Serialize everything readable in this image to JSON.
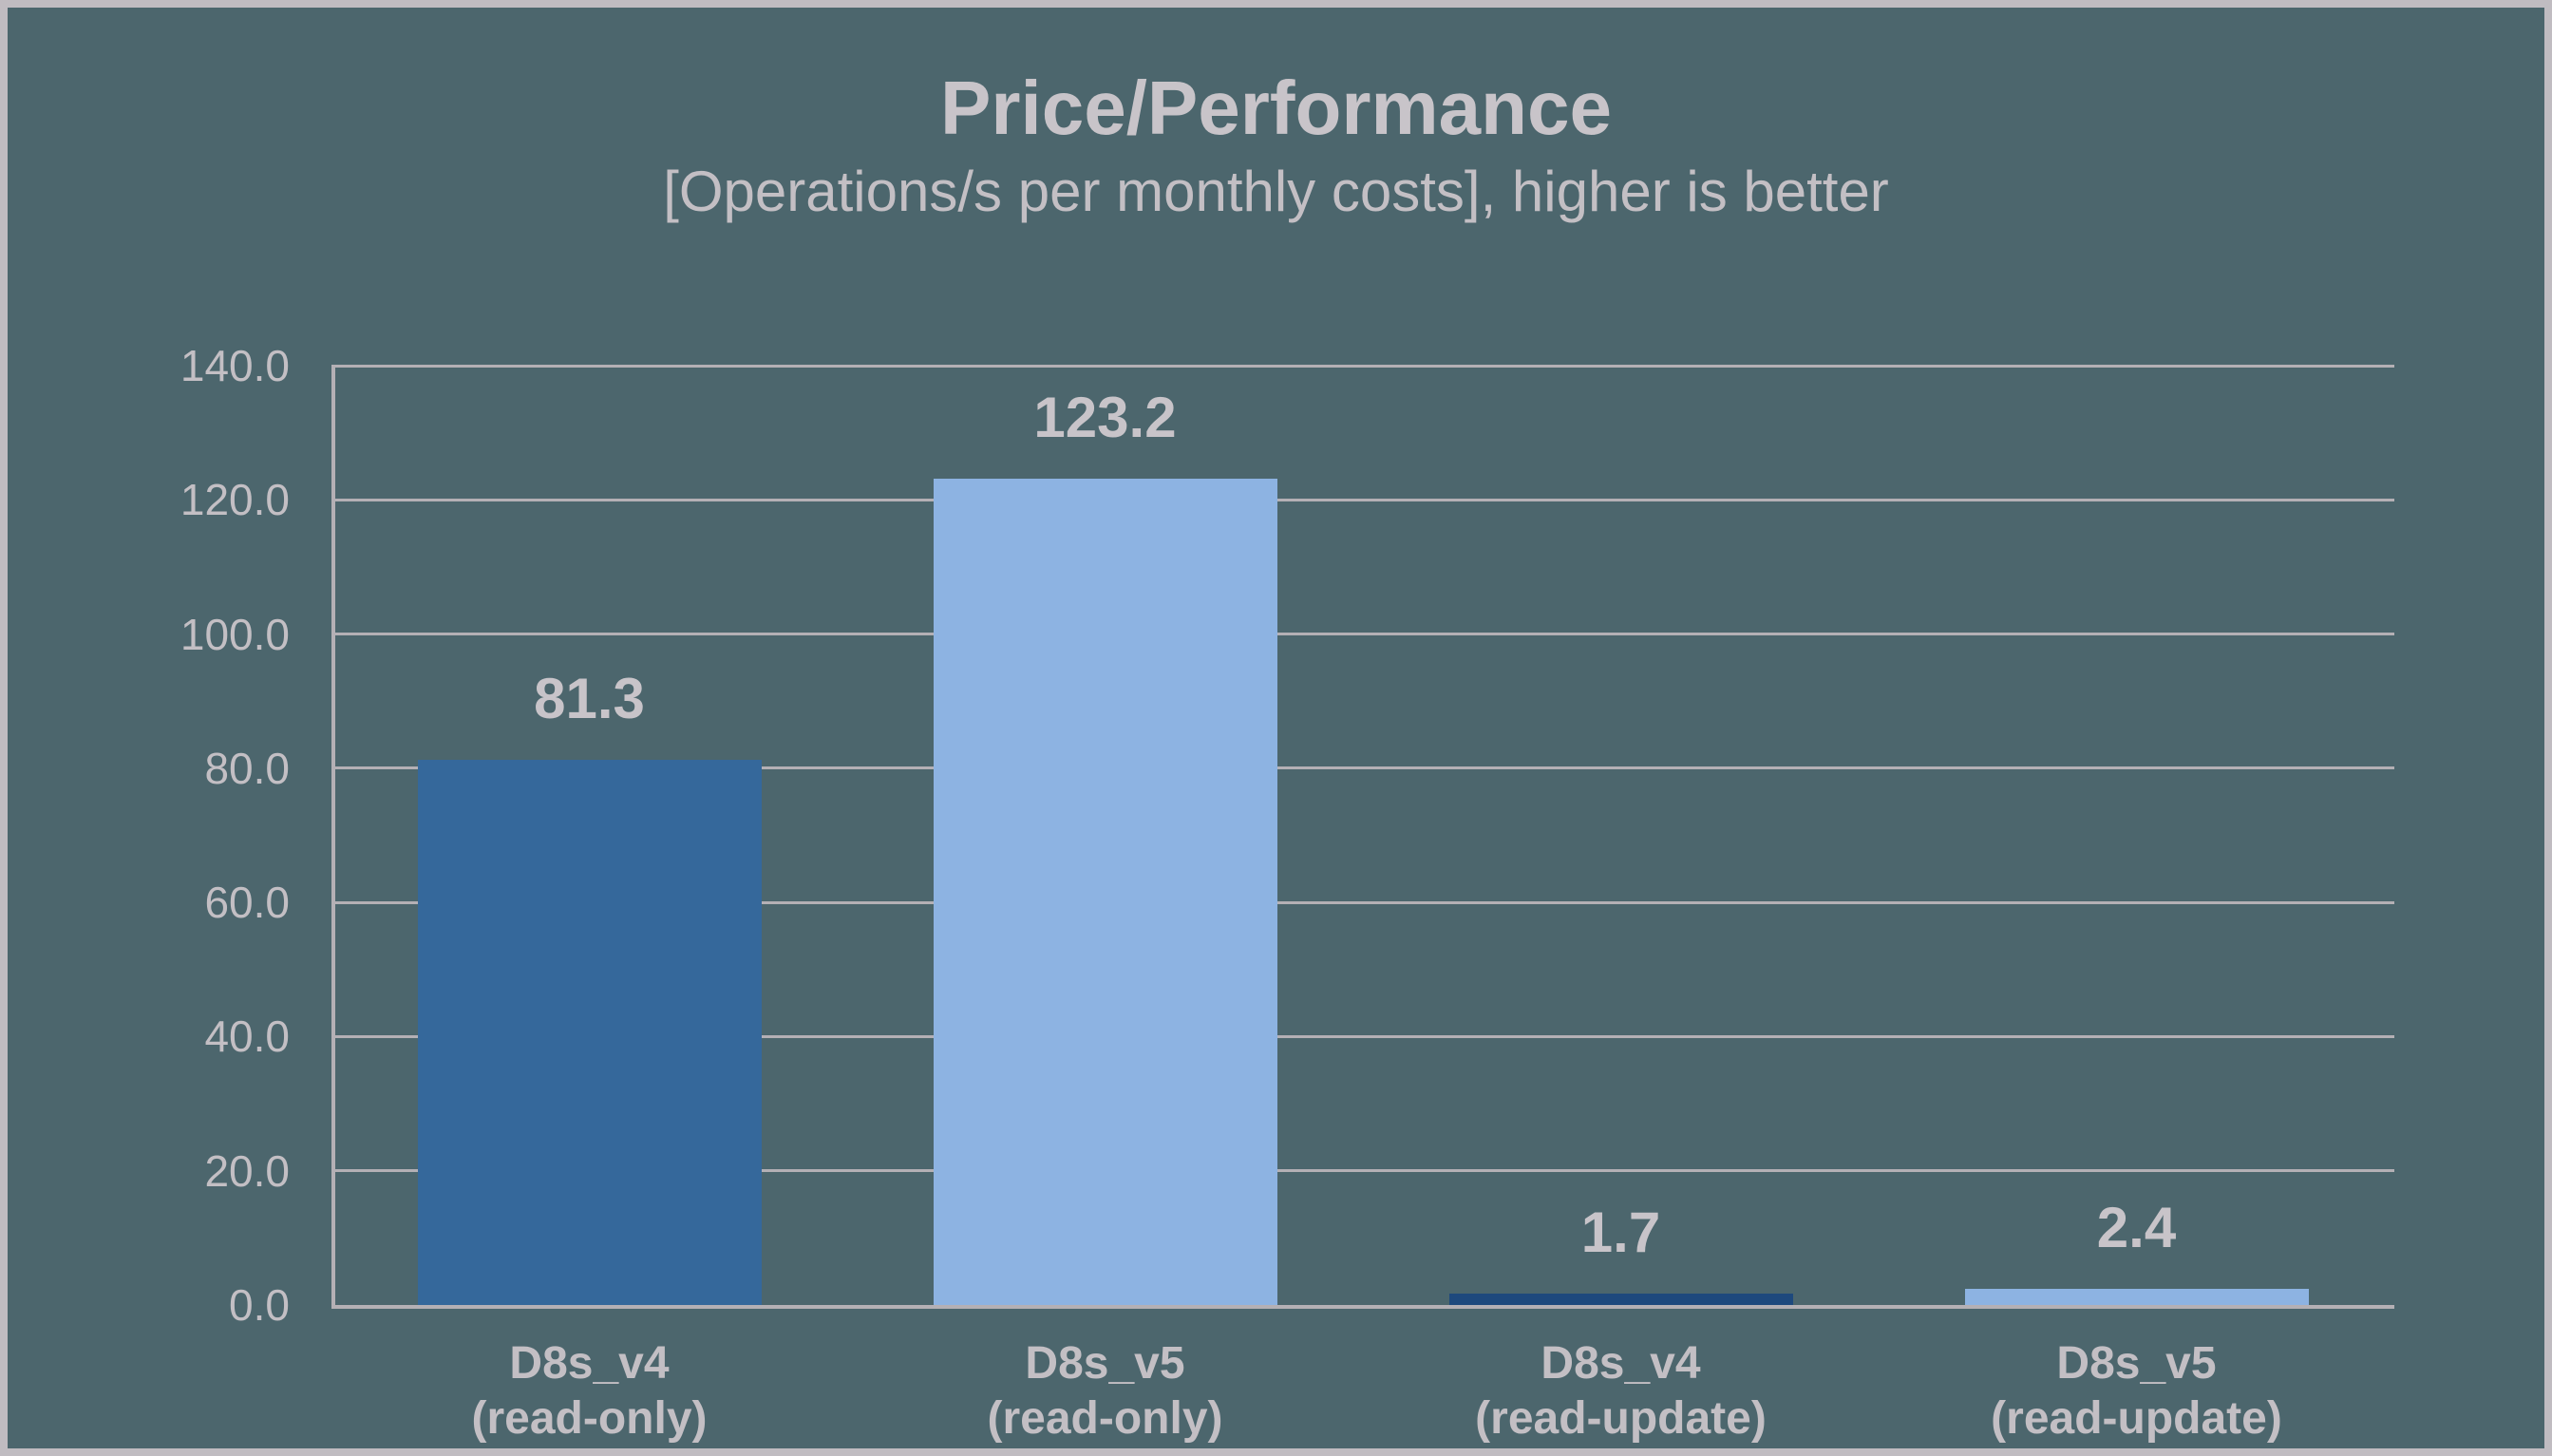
{
  "chart_data": {
    "type": "bar",
    "title": "Price/Performance",
    "subtitle": "[Operations/s per monthly costs], higher is better",
    "categories": [
      {
        "line1": "D8s_v4",
        "line2": "(read-only)"
      },
      {
        "line1": "D8s_v5",
        "line2": "(read-only)"
      },
      {
        "line1": "D8s_v4",
        "line2": "(read-update)"
      },
      {
        "line1": "D8s_v5",
        "line2": "(read-update)"
      }
    ],
    "values": [
      81.3,
      123.2,
      1.7,
      2.4
    ],
    "value_labels": [
      "81.3",
      "123.2",
      "1.7",
      "2.4"
    ],
    "bar_colors": [
      "#35689b",
      "#8db3e2",
      "#1e497d",
      "#8db3e2"
    ],
    "ylim": [
      0,
      140
    ],
    "ytick_step": 20,
    "ytick_labels": [
      "0.0",
      "20.0",
      "40.0",
      "60.0",
      "80.0",
      "100.0",
      "120.0",
      "140.0"
    ],
    "grid": true,
    "legend_position": "none"
  },
  "colors": {
    "background": "#4c666d",
    "frame_border": "#c0bcc1",
    "gridline": "#b4b0b5",
    "text_bright": "#c8c4c9",
    "text_muted": "#c3bfc4"
  }
}
